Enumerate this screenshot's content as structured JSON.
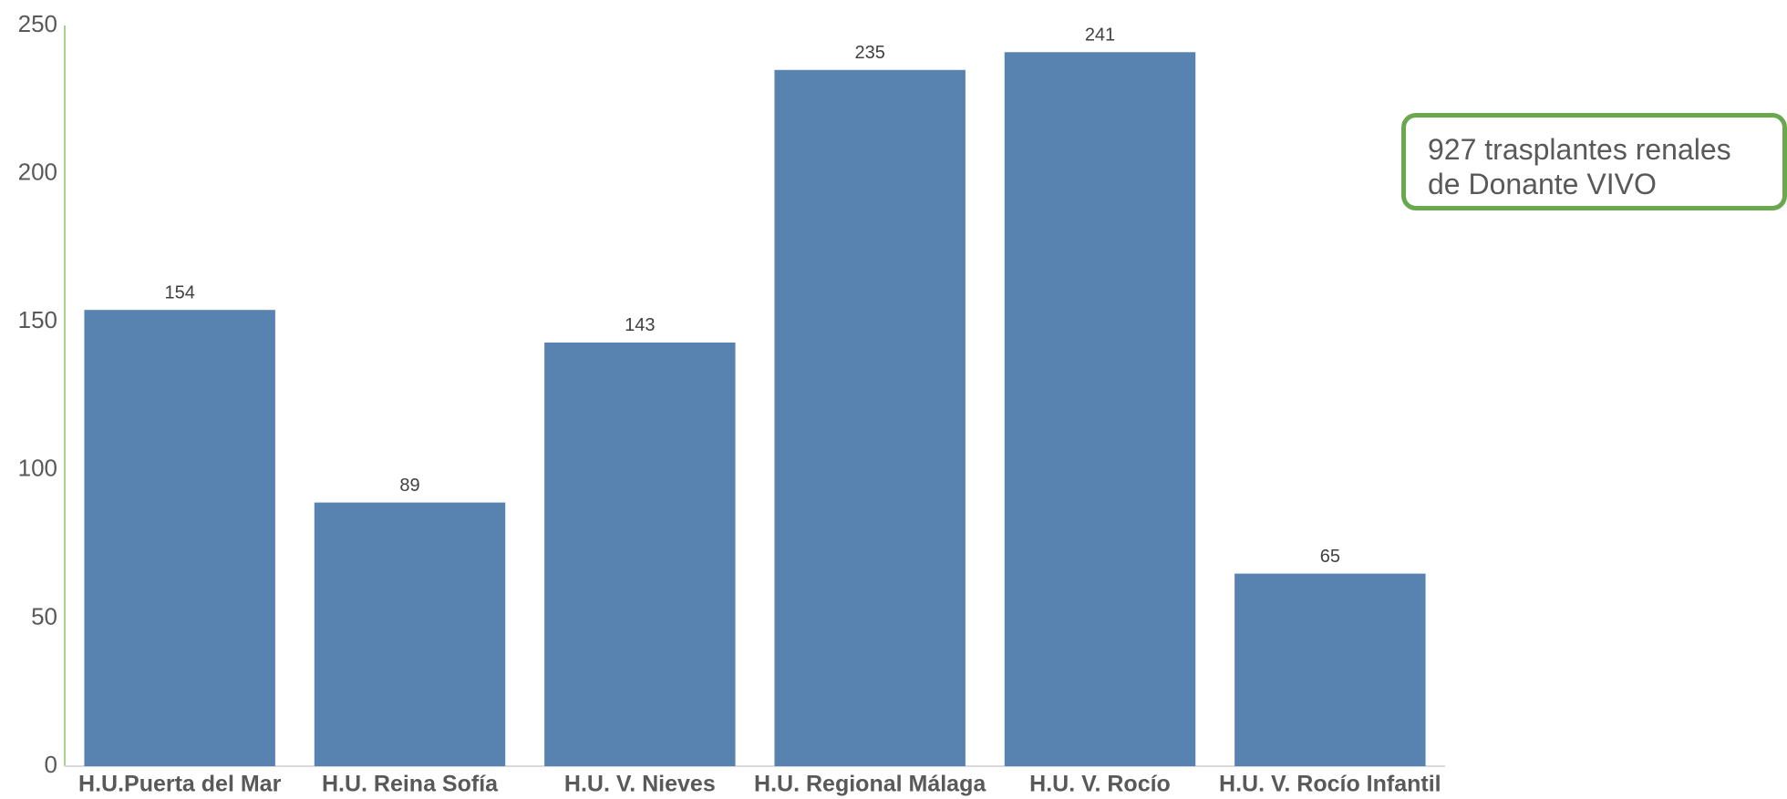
{
  "chart_data": {
    "type": "bar",
    "categories": [
      "H.U.Puerta del Mar",
      "H.U. Reina Sofía",
      "H.U. V. Nieves",
      "H.U. Regional Málaga",
      "H.U. V. Rocío",
      "H.U. V. Rocío Infantil"
    ],
    "values": [
      154,
      89,
      143,
      235,
      241,
      65
    ],
    "color": "#5883b1",
    "ylim": [
      0,
      250
    ],
    "yticks": [
      0,
      50,
      100,
      150,
      200,
      250
    ],
    "grid": false,
    "annotation": "927 trasplantes renales de Donante VIVO"
  }
}
